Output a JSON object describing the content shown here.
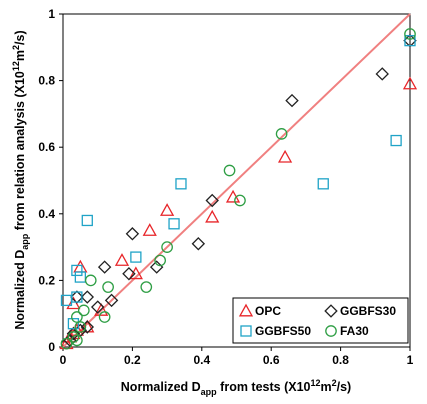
{
  "chart_data": {
    "type": "scatter",
    "xlabel": {
      "pre": "Normalized D",
      "sub": "app",
      "mid": " from tests (X10",
      "sup1": "12",
      "post1": "m",
      "sup2": "2",
      "post2": "/s)"
    },
    "ylabel": {
      "pre": "Normalized D",
      "sub": "app",
      "mid": " from relation analysis (X10",
      "sup1": "12",
      "post1": "m",
      "sup2": "2",
      "post2": "/s)"
    },
    "xlim": [
      0,
      1
    ],
    "ylim": [
      0,
      1
    ],
    "xticks": [
      "0",
      "0.2",
      "0.4",
      "0.6",
      "0.8",
      "1"
    ],
    "yticks": [
      "0",
      "0.2",
      "0.4",
      "0.6",
      "0.8",
      "1"
    ],
    "grid": false,
    "legend_position": "bottom-right",
    "reference_line": {
      "from": [
        0,
        0
      ],
      "to": [
        1,
        1
      ],
      "color": "#f08080"
    },
    "series": [
      {
        "name": "OPC",
        "marker": "triangle",
        "color": "#e8262a",
        "points": [
          [
            0.01,
            0.01
          ],
          [
            0.02,
            0.03
          ],
          [
            0.03,
            0.04
          ],
          [
            0.03,
            0.13
          ],
          [
            0.04,
            0.05
          ],
          [
            0.05,
            0.24
          ],
          [
            0.07,
            0.06
          ],
          [
            0.11,
            0.11
          ],
          [
            0.17,
            0.26
          ],
          [
            0.21,
            0.22
          ],
          [
            0.25,
            0.35
          ],
          [
            0.3,
            0.41
          ],
          [
            0.43,
            0.39
          ],
          [
            0.49,
            0.45
          ],
          [
            0.64,
            0.57
          ],
          [
            1.0,
            0.79
          ]
        ]
      },
      {
        "name": "GGBFS30",
        "marker": "diamond",
        "color": "#222222",
        "points": [
          [
            0.02,
            0.02
          ],
          [
            0.03,
            0.04
          ],
          [
            0.04,
            0.15
          ],
          [
            0.05,
            0.05
          ],
          [
            0.07,
            0.15
          ],
          [
            0.07,
            0.06
          ],
          [
            0.1,
            0.12
          ],
          [
            0.12,
            0.24
          ],
          [
            0.14,
            0.14
          ],
          [
            0.19,
            0.22
          ],
          [
            0.2,
            0.34
          ],
          [
            0.27,
            0.24
          ],
          [
            0.39,
            0.31
          ],
          [
            0.43,
            0.44
          ],
          [
            0.66,
            0.74
          ],
          [
            0.92,
            0.82
          ],
          [
            1.0,
            0.92
          ]
        ]
      },
      {
        "name": "GGBFS50",
        "marker": "square",
        "color": "#1fa3c7",
        "points": [
          [
            0.01,
            0.14
          ],
          [
            0.03,
            0.07
          ],
          [
            0.04,
            0.15
          ],
          [
            0.04,
            0.23
          ],
          [
            0.05,
            0.21
          ],
          [
            0.07,
            0.38
          ],
          [
            0.21,
            0.27
          ],
          [
            0.32,
            0.37
          ],
          [
            0.34,
            0.49
          ],
          [
            0.75,
            0.49
          ],
          [
            0.96,
            0.62
          ],
          [
            1.0,
            0.92
          ]
        ]
      },
      {
        "name": "FA30",
        "marker": "circle",
        "color": "#2e9e44",
        "points": [
          [
            0.01,
            0.01
          ],
          [
            0.03,
            0.03
          ],
          [
            0.04,
            0.02
          ],
          [
            0.04,
            0.09
          ],
          [
            0.05,
            0.06
          ],
          [
            0.06,
            0.11
          ],
          [
            0.08,
            0.2
          ],
          [
            0.12,
            0.09
          ],
          [
            0.13,
            0.18
          ],
          [
            0.24,
            0.18
          ],
          [
            0.28,
            0.26
          ],
          [
            0.3,
            0.3
          ],
          [
            0.48,
            0.53
          ],
          [
            0.51,
            0.44
          ],
          [
            0.63,
            0.64
          ],
          [
            1.0,
            0.94
          ]
        ]
      }
    ]
  }
}
